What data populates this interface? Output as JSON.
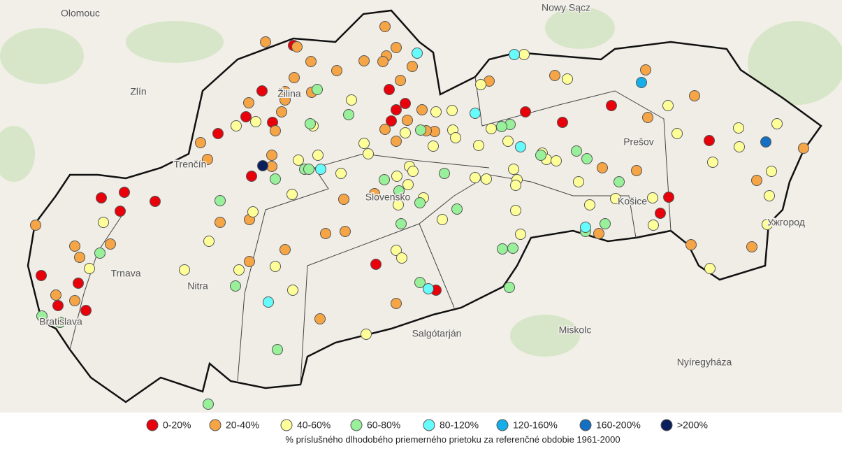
{
  "map": {
    "places": [
      "Olomouc",
      "Nowy Sącz",
      "Zlín",
      "Žilina",
      "Trenčín",
      "Prešov",
      "Slovensko",
      "Košice",
      "Trnava",
      "Nitra",
      "Bratislava",
      "Ужгород",
      "Salgótarján",
      "Miskolc",
      "Nyíregyháza"
    ]
  },
  "legend": {
    "items": [
      {
        "label": "0-20%",
        "color": "#e8000b"
      },
      {
        "label": "20-40%",
        "color": "#f5a446"
      },
      {
        "label": "40-60%",
        "color": "#ffff99"
      },
      {
        "label": "60-80%",
        "color": "#99f09a"
      },
      {
        "label": "80-120%",
        "color": "#66fcfc"
      },
      {
        "label": "120-160%",
        "color": "#16aee8"
      },
      {
        "label": "160-200%",
        "color": "#1670c2"
      },
      {
        "label": ">200%",
        "color": "#0b1f5c"
      }
    ],
    "caption": "% príslušného dlhodobého priemerného prietoku za referenčné obdobie 1961-2000"
  }
}
